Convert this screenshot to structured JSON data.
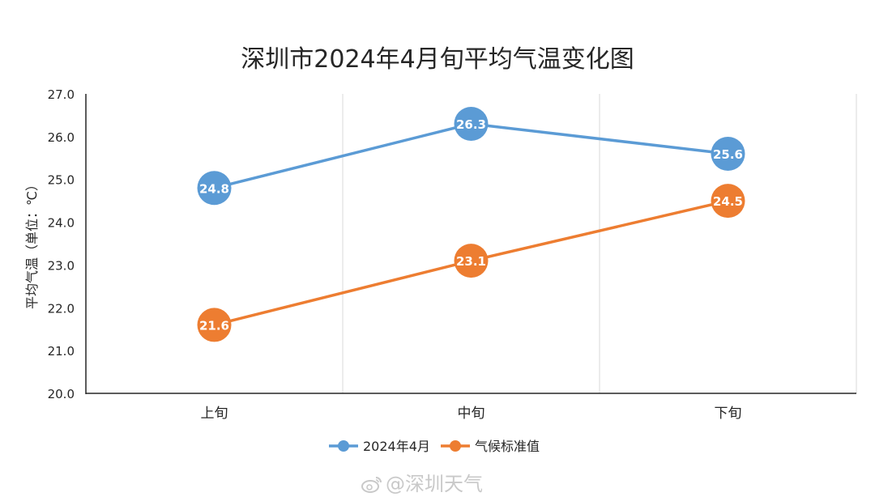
{
  "chart_data": {
    "type": "line",
    "title": "深圳市2024年4月旬平均气温变化图",
    "ylabel": "平均气温（单位：℃）",
    "xlabel": "",
    "categories": [
      "上旬",
      "中旬",
      "下旬"
    ],
    "ylim": [
      20.0,
      27.0
    ],
    "yticks": [
      "20.0",
      "21.0",
      "22.0",
      "23.0",
      "24.0",
      "25.0",
      "26.0",
      "27.0"
    ],
    "grid": "vertical",
    "legend_position": "bottom",
    "series": [
      {
        "name": "2024年4月",
        "values": [
          24.8,
          26.3,
          25.6
        ],
        "color": "#5b9bd5"
      },
      {
        "name": "气候标准值",
        "values": [
          21.6,
          23.1,
          24.5
        ],
        "color": "#ed7d31"
      }
    ]
  },
  "watermark": "@深圳天气"
}
